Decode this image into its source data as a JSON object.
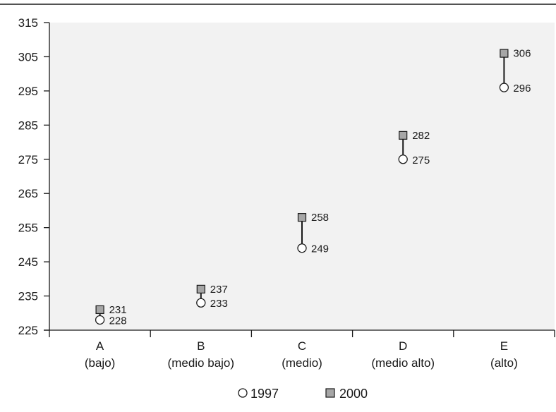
{
  "chart_data": {
    "type": "scatter",
    "categories": [
      {
        "letter": "A",
        "desc": "(bajo)"
      },
      {
        "letter": "B",
        "desc": "(medio bajo)"
      },
      {
        "letter": "C",
        "desc": "(medio)"
      },
      {
        "letter": "D",
        "desc": "(medio alto)"
      },
      {
        "letter": "E",
        "desc": "(alto)"
      }
    ],
    "series": [
      {
        "name": "1997",
        "marker": "circle",
        "fill": "#ffffff",
        "values": [
          228,
          233,
          249,
          275,
          296
        ]
      },
      {
        "name": "2000",
        "marker": "square",
        "fill": "#a6a6a6",
        "values": [
          231,
          237,
          258,
          282,
          306
        ]
      }
    ],
    "ylim": [
      225,
      315
    ],
    "yticks": [
      225,
      235,
      245,
      255,
      265,
      275,
      285,
      295,
      305,
      315
    ],
    "plot_background": "#f2f2f2",
    "grid": false,
    "legend_placement": "bottom-center",
    "title": "",
    "xlabel": "",
    "ylabel": ""
  }
}
